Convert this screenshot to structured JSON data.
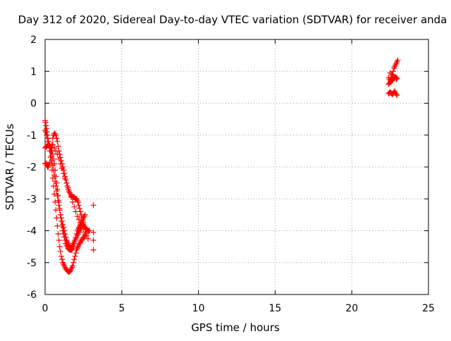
{
  "chart_data": {
    "type": "scatter",
    "title": "Day 312 of 2020, Sidereal Day-to-day VTEC variation (SDTVAR) for receiver anda",
    "xlabel": "GPS time / hours",
    "ylabel": "SDTVAR / TECUs",
    "xlim": [
      0,
      25
    ],
    "ylim": [
      -6,
      2
    ],
    "xticks": [
      0,
      5,
      10,
      15,
      20,
      25
    ],
    "yticks": [
      -6,
      -5,
      -4,
      -3,
      -2,
      -1,
      0,
      1,
      2
    ],
    "xtick_labels": [
      "0",
      "5",
      "10",
      "15",
      "20",
      "25"
    ],
    "ytick_labels": [
      "-6",
      "-5",
      "-4",
      "-3",
      "-2",
      "-1",
      "0",
      "1",
      "2"
    ],
    "grid": true,
    "marker": "+",
    "series_color": "#ff0000",
    "series": [
      {
        "name": "SDTVAR",
        "x": [
          0.0,
          0.03,
          0.06,
          0.09,
          0.12,
          0.15,
          0.18,
          0.22,
          0.26,
          0.3,
          0.35,
          0.4,
          0.45,
          0.5,
          0.55,
          0.6,
          0.65,
          0.7,
          0.75,
          0.8,
          0.85,
          0.9,
          0.95,
          1.0,
          1.05,
          1.1,
          1.15,
          1.2,
          1.25,
          1.3,
          1.35,
          1.4,
          1.45,
          1.5,
          1.55,
          1.6,
          1.65,
          1.7,
          1.75,
          1.8,
          1.85,
          1.9,
          1.95,
          2.0,
          2.05,
          2.1,
          2.15,
          2.2,
          2.25,
          2.3,
          2.35,
          2.4,
          2.45,
          2.5,
          2.55,
          2.6,
          2.65,
          0.0,
          0.05,
          0.1,
          0.15,
          0.2,
          0.25,
          0.3,
          0.35,
          0.4,
          0.45,
          0.5,
          0.55,
          0.6,
          0.65,
          0.7,
          0.75,
          0.8,
          0.85,
          0.9,
          0.95,
          1.0,
          1.05,
          1.1,
          1.15,
          1.2,
          1.25,
          1.3,
          1.35,
          1.4,
          1.45,
          1.5,
          1.55,
          1.6,
          1.65,
          1.7,
          1.75,
          1.8,
          1.85,
          1.9,
          1.95,
          2.0,
          2.05,
          2.1,
          2.15,
          2.2,
          2.25,
          2.3,
          2.35,
          2.4,
          2.45,
          2.5,
          2.55,
          2.6,
          0.0,
          0.04,
          0.08,
          0.12,
          0.16,
          0.2,
          0.25,
          0.3,
          0.35,
          0.4,
          0.45,
          0.5,
          0.55,
          0.6,
          0.65,
          0.7,
          0.75,
          0.8,
          0.85,
          0.9,
          0.95,
          1.0,
          1.05,
          1.1,
          1.15,
          1.2,
          1.25,
          1.3,
          1.35,
          1.4,
          1.45,
          1.5,
          1.55,
          1.6,
          1.65,
          1.7,
          1.75,
          1.8,
          1.85,
          1.9,
          1.95,
          2.0,
          2.05,
          2.1,
          2.15,
          2.2,
          2.25,
          2.3,
          2.35,
          2.4,
          2.45,
          2.5,
          2.55,
          2.6,
          2.65,
          2.7,
          2.75,
          2.8,
          2.85,
          2.9,
          0.0,
          0.05,
          0.1,
          0.15,
          0.2,
          0.25,
          0.3,
          0.35,
          0.4,
          0.45,
          0.5,
          0.55,
          0.6,
          0.65,
          0.7,
          0.75,
          0.8,
          0.85,
          0.9,
          0.95,
          1.0,
          1.05,
          1.1,
          1.15,
          1.2,
          1.25,
          1.3,
          1.35,
          1.4,
          1.45,
          1.5,
          1.55,
          1.6,
          1.65,
          1.7,
          1.75,
          1.8,
          1.85,
          1.9,
          1.95,
          2.0,
          2.05,
          2.1,
          2.15,
          2.2,
          2.25,
          2.3,
          2.35,
          2.4,
          2.45,
          2.5,
          0.5,
          0.6,
          0.7,
          0.8,
          0.9,
          1.0,
          1.1,
          1.2,
          1.3,
          1.4,
          1.5,
          1.6,
          1.7,
          1.8,
          1.9,
          2.0,
          2.1,
          2.2,
          2.3,
          2.4,
          2.5,
          2.6,
          2.7,
          2.8,
          3.15,
          3.15,
          3.15,
          3.15,
          22.4,
          22.45,
          22.5,
          22.55,
          22.6,
          22.65,
          22.7,
          22.75,
          22.8,
          22.85,
          22.9,
          22.95,
          23.0,
          22.4,
          22.45,
          22.5,
          22.55,
          22.6,
          22.65,
          22.7,
          22.75,
          22.8,
          22.85,
          22.9,
          22.95,
          22.4,
          22.45,
          22.5,
          22.55,
          22.6,
          22.65,
          22.7,
          22.75,
          22.8,
          22.85,
          22.9,
          22.95,
          22.5,
          22.6,
          22.7,
          22.8,
          22.9
        ],
        "y": [
          -0.55,
          -0.6,
          -0.7,
          -0.8,
          -0.9,
          -1.0,
          -1.1,
          -1.2,
          -1.35,
          -1.5,
          -1.7,
          -1.9,
          -2.1,
          -2.35,
          -2.6,
          -2.85,
          -3.1,
          -3.35,
          -3.6,
          -3.85,
          -4.1,
          -4.3,
          -4.5,
          -4.65,
          -4.8,
          -4.9,
          -5.0,
          -5.05,
          -5.1,
          -5.15,
          -5.2,
          -5.22,
          -5.25,
          -5.28,
          -5.3,
          -5.28,
          -5.25,
          -5.2,
          -5.15,
          -5.1,
          -5.0,
          -4.9,
          -4.8,
          -4.7,
          -4.6,
          -4.55,
          -4.5,
          -4.45,
          -4.4,
          -4.35,
          -4.3,
          -4.3,
          -4.25,
          -4.2,
          -4.2,
          -4.15,
          -4.1,
          -0.85,
          -0.9,
          -1.0,
          -1.1,
          -1.2,
          -1.3,
          -1.4,
          -1.5,
          -1.65,
          -1.8,
          -1.95,
          -2.1,
          -2.25,
          -2.45,
          -2.6,
          -2.75,
          -2.9,
          -3.05,
          -3.2,
          -3.35,
          -3.5,
          -3.6,
          -3.7,
          -3.8,
          -3.9,
          -4.0,
          -4.1,
          -4.2,
          -4.3,
          -4.35,
          -4.4,
          -4.45,
          -4.5,
          -4.55,
          -4.6,
          -4.6,
          -4.55,
          -4.5,
          -4.4,
          -4.3,
          -4.2,
          -4.1,
          -4.0,
          -3.95,
          -3.9,
          -3.85,
          -3.8,
          -3.75,
          -3.7,
          -3.65,
          -3.6,
          -3.55,
          -3.5,
          -1.9,
          -1.88,
          -1.9,
          -1.95,
          -2.0,
          -2.0,
          -1.95,
          -1.85,
          -1.7,
          -1.5,
          -1.3,
          -1.1,
          -1.0,
          -0.95,
          -0.95,
          -1.0,
          -1.1,
          -1.2,
          -1.35,
          -1.5,
          -1.6,
          -1.7,
          -1.8,
          -1.9,
          -2.0,
          -2.1,
          -2.2,
          -2.3,
          -2.4,
          -2.5,
          -2.6,
          -2.7,
          -2.75,
          -2.8,
          -2.85,
          -2.9,
          -2.92,
          -2.95,
          -2.95,
          -2.95,
          -2.98,
          -3.0,
          -3.0,
          -3.05,
          -3.1,
          -3.2,
          -3.3,
          -3.4,
          -3.5,
          -3.6,
          -3.7,
          -3.8,
          -3.85,
          -3.9,
          -3.92,
          -3.95,
          -3.97,
          -4.0,
          -4.0,
          -4.0,
          -1.4,
          -1.38,
          -1.35,
          -1.32,
          -1.3,
          -1.3,
          -1.32,
          -1.35,
          -1.4,
          -1.5,
          -1.6,
          -1.75,
          -1.9,
          -2.1,
          -2.3,
          -2.5,
          -2.7,
          -2.9,
          -3.1,
          -3.3,
          -3.5,
          -3.7,
          -3.85,
          -4.0,
          -4.1,
          -4.2,
          -4.3,
          -4.4,
          -4.45,
          -4.5,
          -4.55,
          -4.58,
          -4.6,
          -4.6,
          -4.55,
          -4.5,
          -4.45,
          -4.4,
          -4.35,
          -4.3,
          -4.25,
          -4.2,
          -4.15,
          -4.1,
          -4.05,
          -4.0,
          -3.95,
          -3.9,
          -3.85,
          -3.8,
          -3.75,
          -1.3,
          -1.4,
          -1.5,
          -1.6,
          -1.75,
          -1.9,
          -2.05,
          -2.2,
          -2.35,
          -2.5,
          -2.65,
          -2.8,
          -2.95,
          -3.1,
          -3.25,
          -3.4,
          -3.55,
          -3.65,
          -3.75,
          -3.85,
          -3.95,
          -4.05,
          -4.15,
          -4.25,
          -3.2,
          -4.05,
          -4.3,
          -4.6,
          0.8,
          0.75,
          0.7,
          0.75,
          0.8,
          0.9,
          1.0,
          1.1,
          1.15,
          1.2,
          1.25,
          1.3,
          1.35,
          0.6,
          0.62,
          0.65,
          0.68,
          0.7,
          0.72,
          0.75,
          0.78,
          0.8,
          0.82,
          0.8,
          0.78,
          0.3,
          0.32,
          0.35,
          0.32,
          0.3,
          0.28,
          0.3,
          0.35,
          0.38,
          0.32,
          0.28,
          0.25,
          0.95,
          0.9,
          0.85,
          0.8,
          0.75
        ]
      }
    ]
  }
}
